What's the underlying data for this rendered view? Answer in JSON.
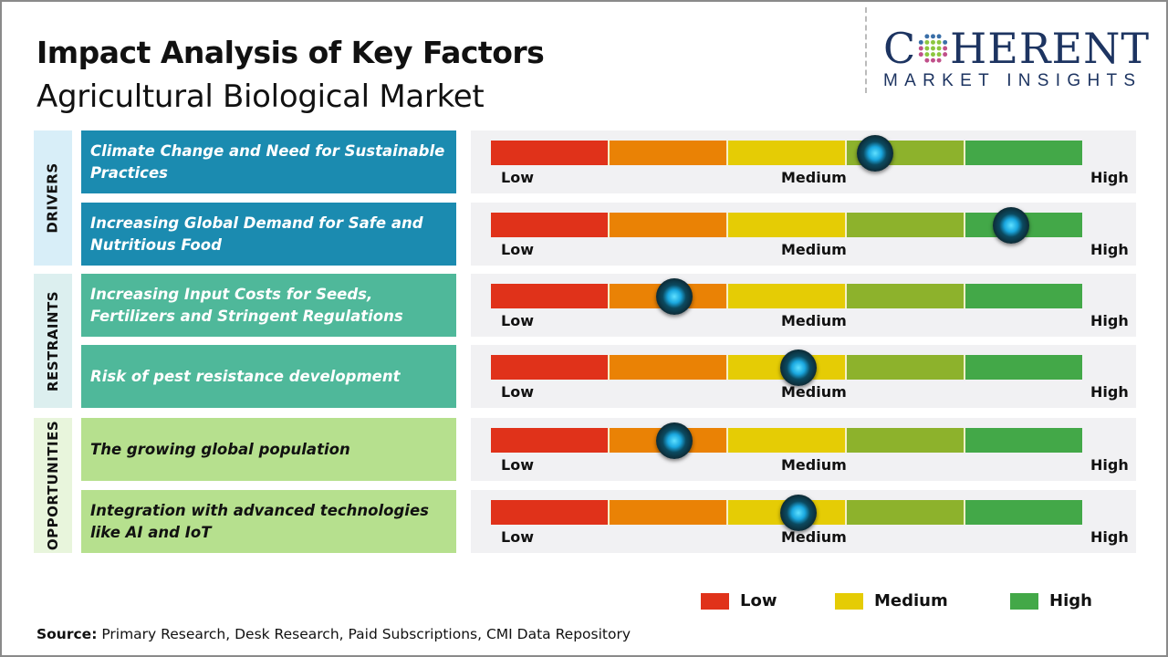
{
  "header": {
    "title": "Impact Analysis of Key Factors",
    "subtitle": "Agricultural Biological Market"
  },
  "logo": {
    "main_left": "C",
    "main_right": "HERENT",
    "sub": "MARKET INSIGHTS"
  },
  "scale": {
    "low": "Low",
    "medium": "Medium",
    "high": "High",
    "colors": [
      "#e0321a",
      "#ea8205",
      "#e5cc05",
      "#8db22c",
      "#43a848"
    ]
  },
  "categories": [
    {
      "label": "DRIVERS",
      "side_color": "#d8eef8",
      "box_color": "#1b8bb0",
      "text_color": "#ffffff",
      "factors": [
        {
          "text": "Climate Change and Need for Sustainable Practices",
          "impact_percent": 65
        },
        {
          "text": "Increasing Global Demand for Safe and Nutritious Food",
          "impact_percent": 88
        }
      ]
    },
    {
      "label": "RESTRAINTS",
      "side_color": "#dcefef",
      "box_color": "#4fb89a",
      "text_color": "#ffffff",
      "factors": [
        {
          "text": "Increasing Input Costs for Seeds, Fertilizers and Stringent Regulations",
          "impact_percent": 31
        },
        {
          "text": "Risk of pest resistance development",
          "impact_percent": 52
        }
      ]
    },
    {
      "label": "OPPORTUNITIES",
      "side_color": "#e8f5dc",
      "box_color": "#b6e08e",
      "text_color": "#111111",
      "factors": [
        {
          "text": "The growing global population",
          "impact_percent": 31
        },
        {
          "text": "Integration with advanced technologies like AI and IoT",
          "impact_percent": 52
        }
      ]
    }
  ],
  "legend": [
    {
      "label": "Low",
      "color": "#e0321a"
    },
    {
      "label": "Medium",
      "color": "#e5cc05"
    },
    {
      "label": "High",
      "color": "#43a848"
    }
  ],
  "source": {
    "label": "Source:",
    "text": " Primary Research, Desk Research, Paid Subscriptions, CMI Data Repository"
  }
}
